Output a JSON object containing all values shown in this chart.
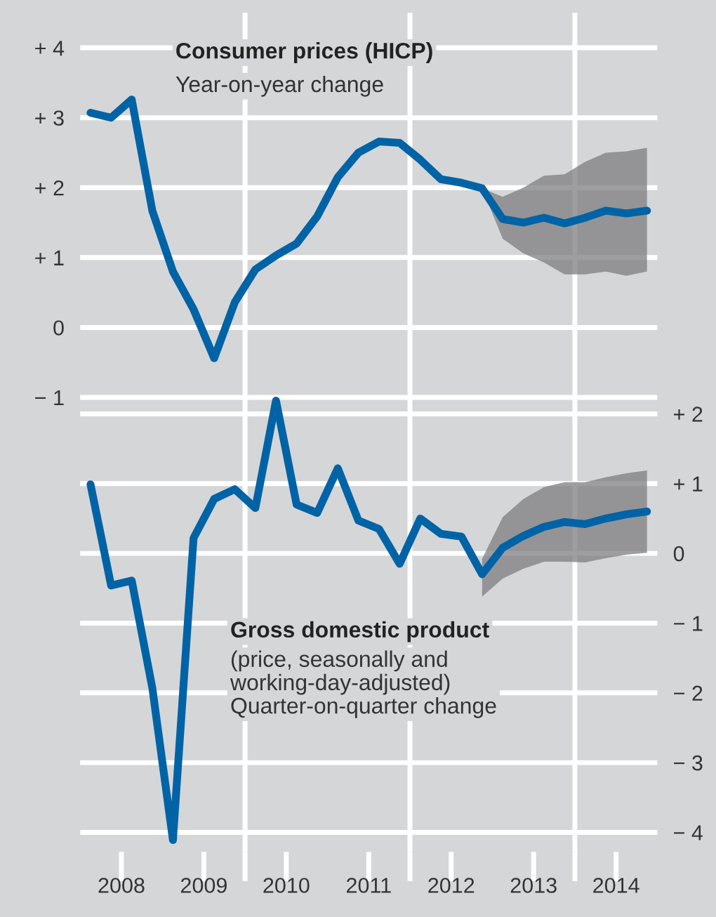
{
  "chart_data": {
    "type": "line",
    "x": [
      2008.125,
      2008.375,
      2008.625,
      2008.875,
      2009.125,
      2009.375,
      2009.625,
      2009.875,
      2010.125,
      2010.375,
      2010.625,
      2010.875,
      2011.125,
      2011.375,
      2011.625,
      2011.875,
      2012.125,
      2012.375,
      2012.625,
      2012.875,
      2013.125,
      2013.375,
      2013.625,
      2013.875,
      2014.125,
      2014.375,
      2014.625,
      2014.875
    ],
    "series": [
      {
        "color": "#0063a6",
        "values": [
          3.07,
          3.0,
          3.26,
          1.67,
          0.8,
          0.26,
          -0.44,
          0.36,
          0.83,
          1.03,
          1.2,
          1.59,
          2.15,
          2.5,
          2.66,
          2.64,
          2.4,
          2.12,
          2.07,
          1.99,
          1.55,
          1.5,
          1.57,
          1.49,
          1.57,
          1.67,
          1.63,
          1.67
        ],
        "lower": [
          null,
          null,
          null,
          null,
          null,
          null,
          null,
          null,
          null,
          null,
          null,
          null,
          null,
          null,
          null,
          null,
          null,
          null,
          null,
          1.99,
          1.27,
          1.06,
          0.93,
          0.76,
          0.76,
          0.8,
          0.74,
          0.8
        ],
        "upper": [
          null,
          null,
          null,
          null,
          null,
          null,
          null,
          null,
          null,
          null,
          null,
          null,
          null,
          null,
          null,
          null,
          null,
          null,
          null,
          1.99,
          1.87,
          2.0,
          2.17,
          2.19,
          2.37,
          2.5,
          2.52,
          2.57
        ]
      },
      {
        "color": "#0063a6",
        "axis": "y2",
        "values": [
          0.99,
          -0.46,
          -0.39,
          -1.93,
          -4.11,
          0.22,
          0.78,
          0.92,
          0.65,
          2.19,
          0.7,
          0.58,
          1.22,
          0.47,
          0.35,
          -0.15,
          0.5,
          0.28,
          0.24,
          -0.3,
          0.08,
          0.25,
          0.38,
          0.45,
          0.42,
          0.5,
          0.56,
          0.6
        ],
        "lower": [
          null,
          null,
          null,
          null,
          null,
          null,
          null,
          null,
          null,
          null,
          null,
          null,
          null,
          null,
          null,
          null,
          null,
          null,
          null,
          -0.62,
          -0.36,
          -0.22,
          -0.12,
          -0.12,
          -0.13,
          -0.07,
          -0.02,
          0.01
        ],
        "upper": [
          null,
          null,
          null,
          null,
          null,
          null,
          null,
          null,
          null,
          null,
          null,
          null,
          null,
          null,
          null,
          null,
          null,
          null,
          null,
          -0.08,
          0.52,
          0.78,
          0.95,
          1.02,
          1.02,
          1.09,
          1.15,
          1.19
        ]
      }
    ],
    "annotations": [
      "Consumer prices (HICP)",
      "Year-on-year change",
      "Gross domestic product",
      "(price, seasonally and\nworking-day-adjusted)\nQuarter-on-quarter change"
    ],
    "xlim": [
      2008,
      2015
    ],
    "xticks": [
      {
        "value": 2008.5,
        "label": "2008"
      },
      {
        "value": 2009.5,
        "label": "2009"
      },
      {
        "value": 2010.0,
        "label": null
      },
      {
        "value": 2010.5,
        "label": "2010"
      },
      {
        "value": 2011.5,
        "label": "2011"
      },
      {
        "value": 2012.0,
        "label": null
      },
      {
        "value": 2012.5,
        "label": "2012"
      },
      {
        "value": 2013.5,
        "label": "2013"
      },
      {
        "value": 2014.0,
        "label": null
      },
      {
        "value": 2014.5,
        "label": "2014"
      }
    ],
    "ylim": [
      -7.5,
      4.5
    ],
    "yticks": [
      {
        "value": 4,
        "label": "+ 4"
      },
      {
        "value": 3,
        "label": "+ 3"
      },
      {
        "value": 2,
        "label": "+ 2"
      },
      {
        "value": 1,
        "label": "+ 1"
      },
      0,
      {
        "value": -1,
        "label": "− 1"
      }
    ],
    "y2lim": [
      -4.28,
      7.75
    ],
    "y2ticks": [
      {
        "value": 2,
        "label": "+ 2"
      },
      {
        "value": 1,
        "label": "+ 1"
      },
      0,
      {
        "value": -1,
        "label": "− 1"
      },
      {
        "value": -2,
        "label": "− 2"
      },
      {
        "value": -3,
        "label": "− 3"
      },
      {
        "value": -4,
        "label": "− 4"
      }
    ],
    "ref_lines": [
      {
        "axis": "x",
        "value": 2010,
        "color": "#ffffff"
      },
      {
        "axis": "x",
        "value": 2012,
        "color": "#ffffff"
      },
      {
        "axis": "x",
        "value": 2014,
        "color": "#ffffff"
      }
    ],
    "grid": "y"
  }
}
